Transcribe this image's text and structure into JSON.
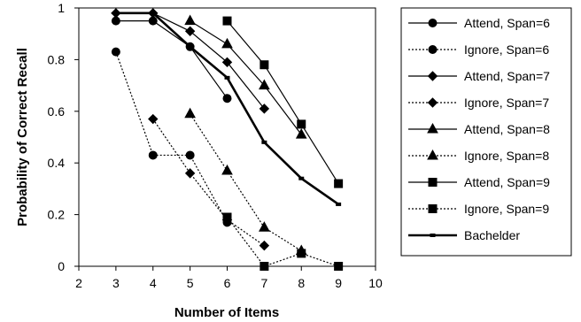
{
  "chart_data": {
    "type": "line",
    "title": "",
    "xlabel": "Number of Items",
    "ylabel": "Probability of Correct Recall",
    "xlim": [
      2,
      10
    ],
    "ylim": [
      0,
      1
    ],
    "x_ticks": [
      2,
      3,
      4,
      5,
      6,
      7,
      8,
      9,
      10
    ],
    "y_ticks": [
      0,
      0.2,
      0.4,
      0.6,
      0.8,
      1
    ],
    "x_tick_labels": [
      "2",
      "3",
      "4",
      "5",
      "6",
      "7",
      "8",
      "9",
      "10"
    ],
    "y_tick_labels": [
      "0",
      "0.2",
      "0.4",
      "0.6",
      "0.8",
      "1"
    ],
    "grid": false,
    "legend_position": "right",
    "series": [
      {
        "name": "Attend, Span=6",
        "marker": "circle",
        "dash": "solid",
        "weight": "normal",
        "x": [
          3,
          4,
          5,
          6
        ],
        "y": [
          0.95,
          0.95,
          0.85,
          0.65
        ]
      },
      {
        "name": "Ignore, Span=6",
        "marker": "circle",
        "dash": "dotted",
        "weight": "normal",
        "x": [
          3,
          4,
          5,
          6
        ],
        "y": [
          0.83,
          0.43,
          0.43,
          0.17
        ]
      },
      {
        "name": "Attend, Span=7",
        "marker": "diamond",
        "dash": "solid",
        "weight": "normal",
        "x": [
          3,
          4,
          5,
          6,
          7
        ],
        "y": [
          0.98,
          0.98,
          0.91,
          0.79,
          0.61
        ]
      },
      {
        "name": "Ignore, Span=7",
        "marker": "diamond",
        "dash": "dotted",
        "weight": "normal",
        "x": [
          4,
          5,
          6,
          7
        ],
        "y": [
          0.57,
          0.36,
          0.18,
          0.08
        ]
      },
      {
        "name": "Attend, Span=8",
        "marker": "triangle",
        "dash": "solid",
        "weight": "normal",
        "x": [
          5,
          6,
          7,
          8
        ],
        "y": [
          0.95,
          0.86,
          0.7,
          0.51
        ]
      },
      {
        "name": "Ignore, Span=8",
        "marker": "triangle",
        "dash": "dotted",
        "weight": "normal",
        "x": [
          5,
          6,
          7,
          8
        ],
        "y": [
          0.59,
          0.37,
          0.15,
          0.06
        ]
      },
      {
        "name": "Attend, Span=9",
        "marker": "square",
        "dash": "solid",
        "weight": "normal",
        "x": [
          6,
          7,
          8,
          9
        ],
        "y": [
          0.95,
          0.78,
          0.55,
          0.32
        ]
      },
      {
        "name": "Ignore, Span=9",
        "marker": "square",
        "dash": "dotted",
        "weight": "normal",
        "x": [
          6,
          7,
          8,
          9
        ],
        "y": [
          0.19,
          0,
          0.05,
          0
        ]
      },
      {
        "name": "Bachelder",
        "marker": "dash",
        "dash": "solid",
        "weight": "bold",
        "x": [
          3,
          4,
          5,
          6,
          7,
          8,
          9
        ],
        "y": [
          0.98,
          0.98,
          0.85,
          0.73,
          0.48,
          0.34,
          0.24
        ]
      }
    ]
  }
}
